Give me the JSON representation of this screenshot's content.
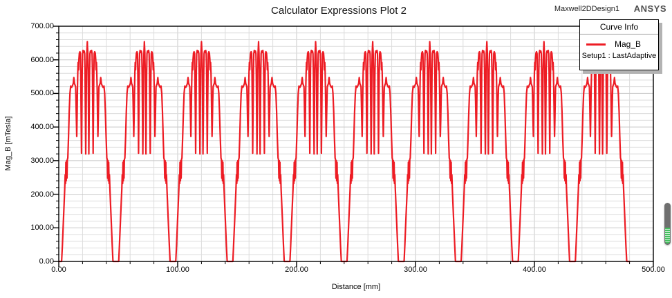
{
  "header": {
    "title": "Calculator Expressions Plot 2",
    "design_name": "Maxwell2DDesign1",
    "brand": "ANSYS"
  },
  "legend": {
    "header": "Curve Info",
    "series_label": "Mag_B",
    "setup_label": "Setup1 : LastAdaptive"
  },
  "axes": {
    "x": {
      "label": "Distance [mm]",
      "min": 0,
      "max": 500,
      "major_tick_step": 100,
      "minor_tick_step": 20,
      "tick_labels": [
        "0.00",
        "100.00",
        "200.00",
        "300.00",
        "400.00",
        "500.00"
      ]
    },
    "y": {
      "label": "Mag_B [mTesla]",
      "min": 0,
      "max": 700,
      "major_tick_step": 100,
      "minor_tick_step": 20,
      "tick_labels": [
        "0.00",
        "100.00",
        "200.00",
        "300.00",
        "400.00",
        "500.00",
        "600.00",
        "700.00"
      ]
    }
  },
  "colors": {
    "curve": "#ed1c24",
    "grid_minor": "#dcdcdc",
    "grid_major": "#c8c8c8",
    "axis": "#000000",
    "legend_shadow": "#b3b3b3",
    "brand_text": "#4f4f4f"
  },
  "chart_data": {
    "type": "line",
    "title": "Calculator Expressions Plot 2",
    "xlabel": "Distance [mm]",
    "ylabel": "Mag_B [mTesla]",
    "xlim": [
      0,
      500
    ],
    "ylim": [
      0,
      700
    ],
    "grid": true,
    "legend_position": "top-right",
    "series": [
      {
        "name": "Mag_B",
        "setup": "Setup1 : LastAdaptive",
        "color": "#ed1c24",
        "waveform": "periodic",
        "period_mm": 48,
        "num_periods": 10,
        "x_start": 0,
        "x_end": 480,
        "peak_value": 655,
        "shoulder_value": 528,
        "period_profile": [
          [
            0,
            0
          ],
          [
            2.4,
            0
          ],
          [
            3,
            45
          ],
          [
            4,
            130
          ],
          [
            5,
            215
          ],
          [
            5.4,
            258
          ],
          [
            5.7,
            232
          ],
          [
            6,
            295
          ],
          [
            6.3,
            240
          ],
          [
            6.6,
            300
          ],
          [
            6.9,
            248
          ],
          [
            7.2,
            303
          ],
          [
            7.6,
            308
          ],
          [
            8.2,
            370
          ],
          [
            8.8,
            445
          ],
          [
            9.4,
            500
          ],
          [
            10,
            522
          ],
          [
            10.8,
            518
          ],
          [
            11.6,
            524
          ],
          [
            12.2,
            530
          ],
          [
            12.7,
            547
          ],
          [
            13.2,
            530
          ],
          [
            13.8,
            524
          ],
          [
            14.2,
            520
          ],
          [
            14.5,
            478
          ],
          [
            14.8,
            420
          ],
          [
            15.1,
            372
          ],
          [
            15.4,
            432
          ],
          [
            15.7,
            508
          ],
          [
            16,
            562
          ],
          [
            16.3,
            592
          ],
          [
            16.6,
            570
          ],
          [
            16.9,
            600
          ],
          [
            17.3,
            620
          ],
          [
            17.8,
            624
          ],
          [
            18.2,
            618
          ],
          [
            18.5,
            558
          ],
          [
            18.8,
            448
          ],
          [
            19.1,
            322
          ],
          [
            19.4,
            442
          ],
          [
            19.7,
            566
          ],
          [
            20,
            618
          ],
          [
            20.4,
            628
          ],
          [
            20.8,
            622
          ],
          [
            21.4,
            626
          ],
          [
            21.8,
            618
          ],
          [
            22.1,
            560
          ],
          [
            22.4,
            442
          ],
          [
            22.7,
            320
          ],
          [
            23,
            445
          ],
          [
            23.3,
            570
          ],
          [
            23.6,
            622
          ],
          [
            23.85,
            640
          ],
          [
            24,
            654
          ],
          [
            24.15,
            640
          ],
          [
            24.4,
            622
          ],
          [
            24.7,
            570
          ],
          [
            25,
            445
          ],
          [
            25.3,
            320
          ],
          [
            25.6,
            442
          ],
          [
            25.9,
            560
          ],
          [
            26.2,
            618
          ],
          [
            26.6,
            626
          ],
          [
            27.2,
            622
          ],
          [
            27.6,
            628
          ],
          [
            28,
            618
          ],
          [
            28.3,
            566
          ],
          [
            28.6,
            442
          ],
          [
            28.9,
            322
          ],
          [
            29.2,
            448
          ],
          [
            29.5,
            558
          ],
          [
            29.8,
            618
          ],
          [
            30.2,
            624
          ],
          [
            30.7,
            620
          ],
          [
            31.1,
            600
          ],
          [
            31.4,
            570
          ],
          [
            31.7,
            592
          ],
          [
            32,
            562
          ],
          [
            32.3,
            508
          ],
          [
            32.6,
            432
          ],
          [
            32.9,
            372
          ],
          [
            33.2,
            420
          ],
          [
            33.5,
            478
          ],
          [
            33.8,
            520
          ],
          [
            34.2,
            524
          ],
          [
            34.8,
            530
          ],
          [
            35.3,
            547
          ],
          [
            35.8,
            530
          ],
          [
            36.4,
            524
          ],
          [
            37.2,
            518
          ],
          [
            38,
            522
          ],
          [
            38.6,
            500
          ],
          [
            39.2,
            445
          ],
          [
            39.8,
            370
          ],
          [
            40.4,
            308
          ],
          [
            40.8,
            303
          ],
          [
            41.1,
            248
          ],
          [
            41.4,
            300
          ],
          [
            41.7,
            240
          ],
          [
            42,
            295
          ],
          [
            42.3,
            232
          ],
          [
            42.6,
            258
          ],
          [
            43,
            215
          ],
          [
            44,
            130
          ],
          [
            45,
            45
          ],
          [
            45.6,
            0
          ],
          [
            48,
            0
          ]
        ]
      }
    ]
  }
}
